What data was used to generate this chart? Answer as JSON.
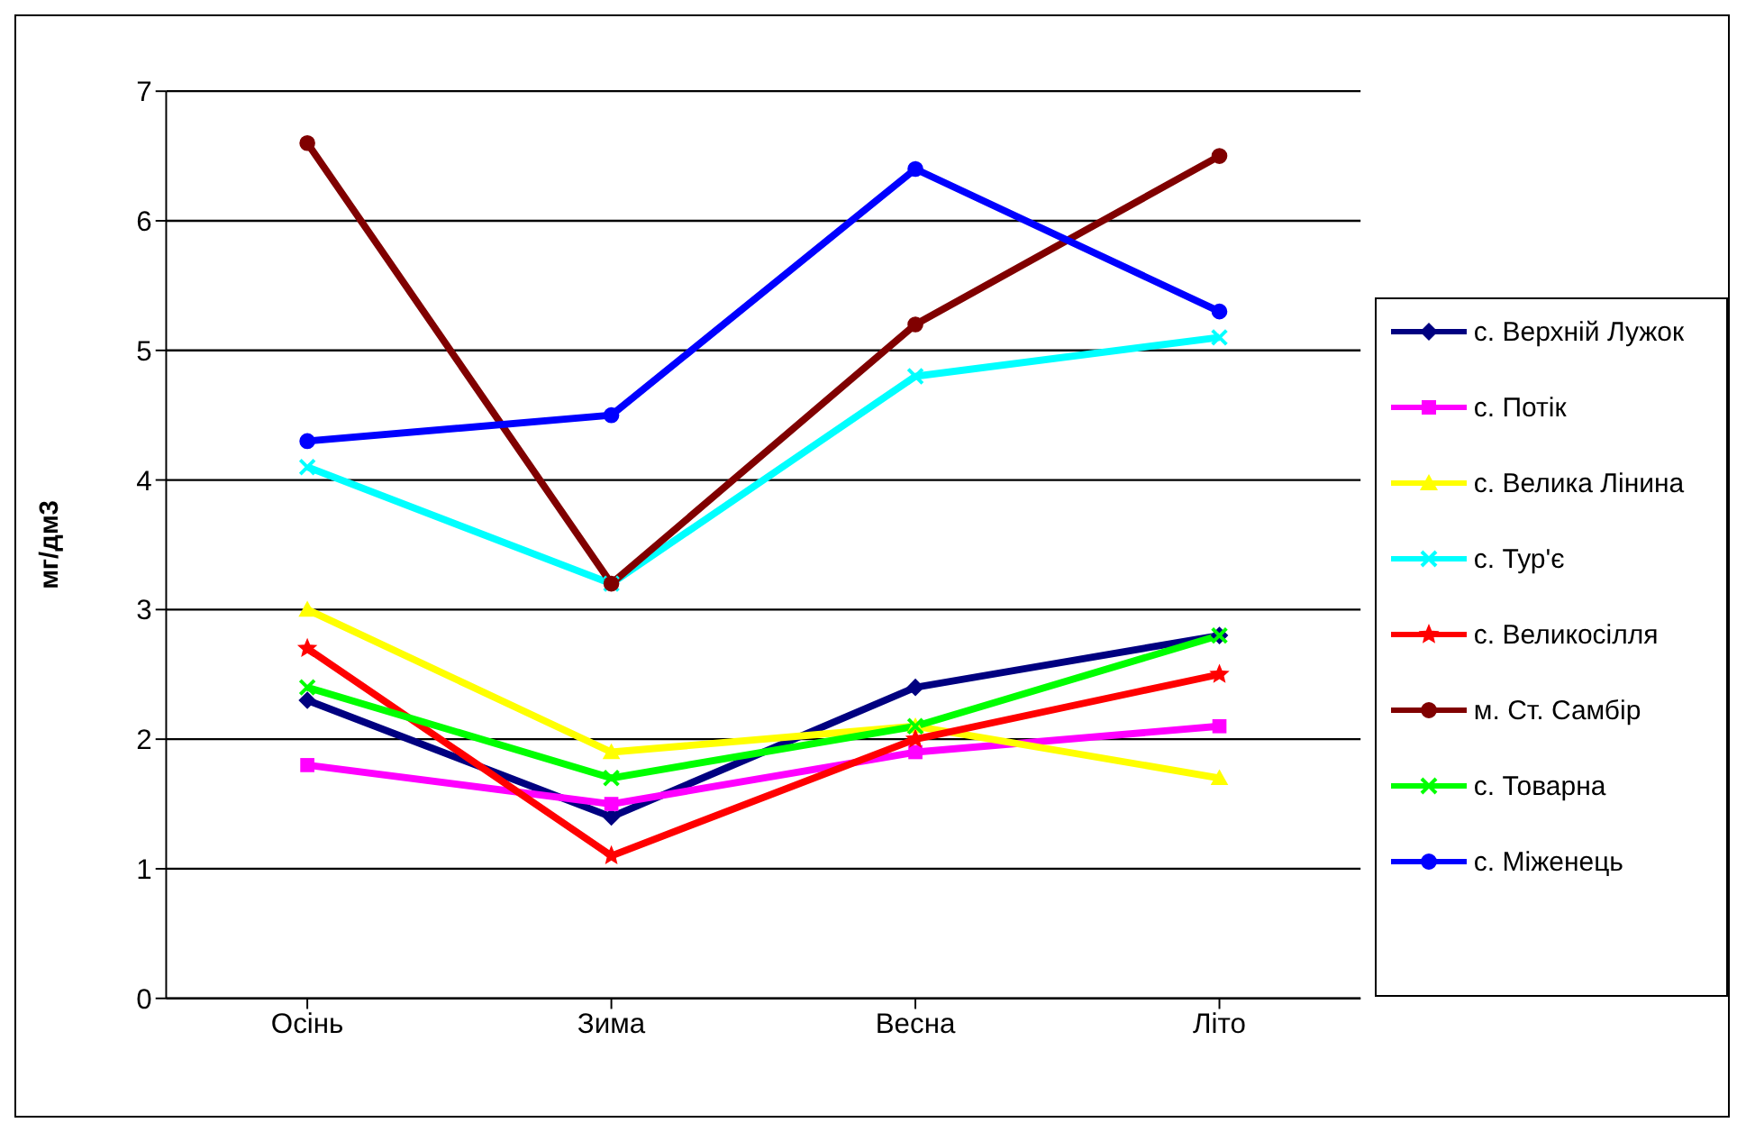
{
  "chart_data": {
    "type": "line",
    "ylabel": "мг/дм3",
    "categories": [
      "Осінь",
      "Зима",
      "Весна",
      "Літо"
    ],
    "ylim": [
      0,
      7
    ],
    "yticks": [
      0,
      1,
      2,
      3,
      4,
      5,
      6,
      7
    ],
    "grid": "y",
    "legend": "right",
    "series": [
      {
        "name": "с. Верхній Лужок",
        "color": "#000080",
        "marker": "diamond",
        "values": [
          2.3,
          1.4,
          2.4,
          2.8
        ]
      },
      {
        "name": "с. Потік",
        "color": "#ff00ff",
        "marker": "square",
        "values": [
          1.8,
          1.5,
          1.9,
          2.1
        ]
      },
      {
        "name": "с. Велика Лінина",
        "color": "#ffff00",
        "marker": "triangle",
        "values": [
          3.0,
          1.9,
          2.1,
          1.7
        ]
      },
      {
        "name": "с. Тур'є",
        "color": "#00ffff",
        "marker": "cross",
        "values": [
          4.1,
          3.2,
          4.8,
          5.1
        ]
      },
      {
        "name": "с. Великосілля",
        "color": "#ff0000",
        "marker": "star",
        "values": [
          2.7,
          1.1,
          2.0,
          2.5
        ]
      },
      {
        "name": "м. Ст. Самбір",
        "color": "#800000",
        "marker": "circle",
        "values": [
          6.6,
          3.2,
          5.2,
          6.5
        ]
      },
      {
        "name": "с. Товарна",
        "color": "#00ff00",
        "marker": "cross",
        "values": [
          2.4,
          1.7,
          2.1,
          2.8
        ]
      },
      {
        "name": "с. Міженець",
        "color": "#0000ff",
        "marker": "circle",
        "values": [
          4.3,
          4.5,
          6.4,
          5.3
        ]
      }
    ]
  }
}
